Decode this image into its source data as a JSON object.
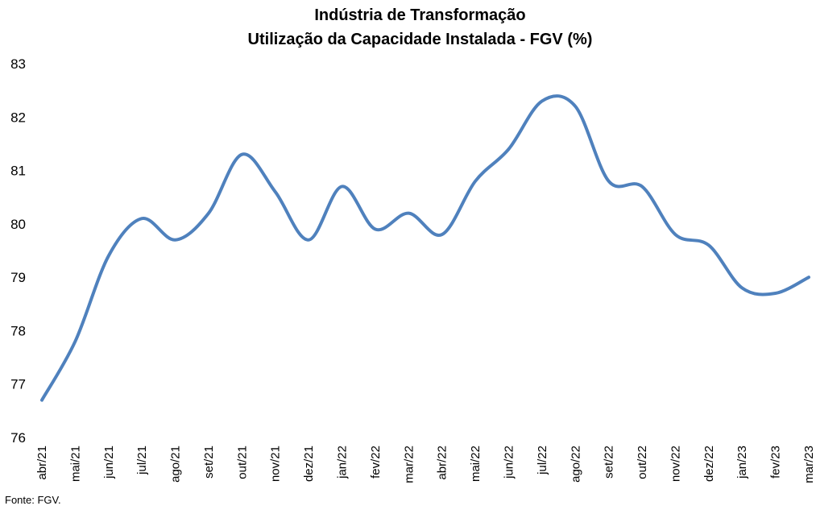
{
  "chart_data": {
    "type": "line",
    "title": "Indústria de Transformação",
    "subtitle": "Utilização da Capacidade Instalada - FGV (%)",
    "categories": [
      "abr/21",
      "mai/21",
      "jun/21",
      "jul/21",
      "ago/21",
      "set/21",
      "out/21",
      "nov/21",
      "dez/21",
      "jan/22",
      "fev/22",
      "mar/22",
      "abr/22",
      "mai/22",
      "jun/22",
      "jul/22",
      "ago/22",
      "set/22",
      "out/22",
      "nov/22",
      "dez/22",
      "jan/23",
      "fev/23",
      "mar/23"
    ],
    "series": [
      {
        "values": [
          76.7,
          77.8,
          79.4,
          80.1,
          79.7,
          80.2,
          81.3,
          80.6,
          79.7,
          80.7,
          79.9,
          80.2,
          79.8,
          80.8,
          81.4,
          82.3,
          82.2,
          80.8,
          80.7,
          79.8,
          79.6,
          78.8,
          78.7,
          79.0
        ]
      }
    ],
    "ylim": [
      76,
      83
    ],
    "yticks": [
      76,
      77,
      78,
      79,
      80,
      81,
      82,
      83
    ],
    "grid": false,
    "line_color": "#4f81bd"
  },
  "source": "Fonte: FGV."
}
